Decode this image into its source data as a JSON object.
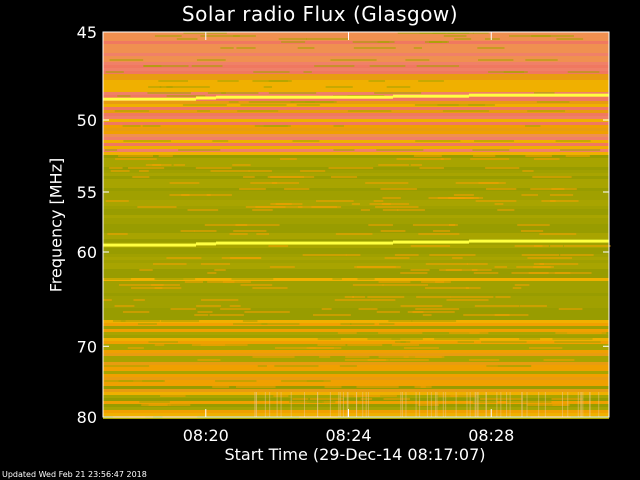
{
  "chart_data": {
    "type": "heatmap",
    "title": "Solar radio Flux (Glasgow)",
    "xlabel": "Start Time (29-Dec-14 08:17:07)",
    "ylabel": "Frequency [MHz]",
    "x_ticks": [
      "08:20",
      "08:24",
      "08:28"
    ],
    "x_tick_minutes": [
      20,
      24,
      28
    ],
    "x_range_minutes": [
      17.12,
      31.3
    ],
    "y_ticks": [
      45,
      50,
      55,
      60,
      70,
      80
    ],
    "y_range": [
      45,
      80
    ],
    "y_scale": "reciprocal",
    "grid": false,
    "colors": {
      "background": "#000000",
      "low": "#a0a000",
      "mid": "#f0a000",
      "high": "#f08060",
      "peak": "#ffff40"
    },
    "bright_lines_mhz": [
      48.6,
      59.2
    ]
  },
  "footer": "Updated Wed Feb 21 23:56:47 2018"
}
